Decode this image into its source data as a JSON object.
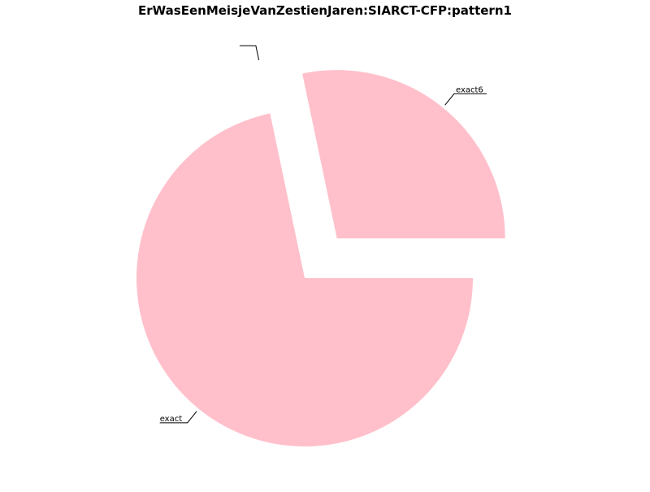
{
  "chart_data": {
    "type": "pie",
    "title": "ErWasEenMeisjeVanZestienJaren:SIARCT-CFP:pattern1",
    "start_angle_deg": 0,
    "direction": "counterclockwise",
    "slices": [
      {
        "label": "exact6",
        "value": 28.3,
        "color": "#ffc0cb",
        "exploded": true
      },
      {
        "label": "",
        "value": 0.0,
        "color": "#ffc0cb",
        "exploded": true
      },
      {
        "label": "exact",
        "value": 71.7,
        "color": "#ffc0cb",
        "exploded": false
      }
    ]
  }
}
